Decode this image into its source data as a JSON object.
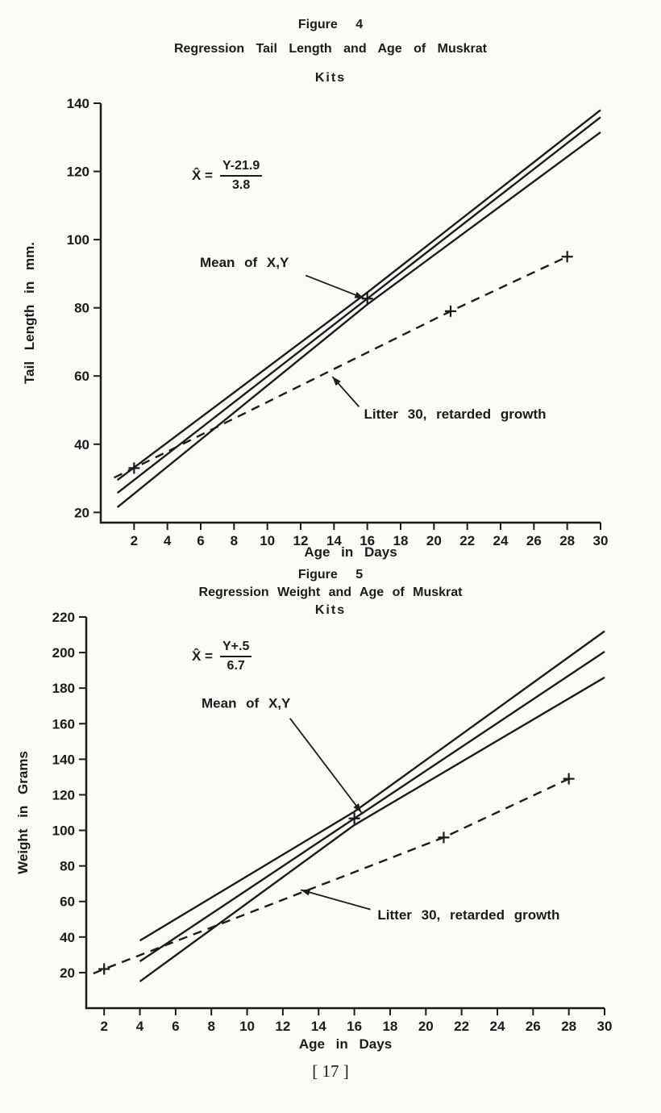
{
  "page": {
    "footer": "[ 17 ]",
    "paper_color": "#fbfbf8",
    "ink_color": "#1b1b1b"
  },
  "chart_data": [
    {
      "type": "line",
      "figure_label": "Figure 4",
      "title": "Regression Tail Length and Age of Muskrat",
      "subtitle": "Kits",
      "formula": {
        "lhs": "X̂ =",
        "numerator": "Y-21.9",
        "denominator": "3.8"
      },
      "xlabel": "Age in Days",
      "ylabel": "Tail Length in mm.",
      "xlim": [
        0,
        30
      ],
      "ylim": [
        17,
        140
      ],
      "xticks": [
        2,
        4,
        6,
        8,
        10,
        12,
        14,
        16,
        18,
        20,
        22,
        24,
        26,
        28,
        30
      ],
      "yticks": [
        20,
        40,
        60,
        80,
        100,
        120,
        140
      ],
      "grid": false,
      "legend": "none",
      "marker_glyph": "+",
      "series": [
        {
          "name": "upper-confidence-band",
          "style": "solid",
          "x": [
            1,
            16,
            30
          ],
          "y": [
            29.5,
            84.5,
            138
          ]
        },
        {
          "name": "mean-regression-line",
          "style": "solid",
          "x": [
            1,
            30
          ],
          "y": [
            25.7,
            135.9
          ],
          "markers": [
            [
              16,
              82.7
            ]
          ]
        },
        {
          "name": "lower-confidence-band",
          "style": "solid",
          "x": [
            1,
            16,
            30
          ],
          "y": [
            21.5,
            81,
            131.5
          ]
        },
        {
          "name": "litter-30-retarded-growth",
          "style": "dashed",
          "x": [
            0.8,
            2,
            21,
            28
          ],
          "y": [
            30.2,
            33,
            79,
            95
          ],
          "markers": [
            [
              2,
              33
            ],
            [
              21,
              79
            ],
            [
              28,
              95
            ]
          ]
        }
      ],
      "annotations": [
        {
          "text": "Mean of X,Y",
          "text_pos": [
            5.95,
            92
          ],
          "arrow": {
            "from": [
              12.3,
              89.5
            ],
            "to": [
              15.8,
              82.8
            ]
          }
        },
        {
          "text": "Litter 30, retarded growth",
          "text_pos": [
            15.8,
            47.5
          ],
          "arrow": {
            "from": [
              15.5,
              51
            ],
            "to": [
              13.9,
              59.8
            ]
          }
        }
      ]
    },
    {
      "type": "line",
      "figure_label": "Figure 5",
      "title": "Regression Weight and Age of Muskrat",
      "subtitle": "Kits",
      "formula": {
        "lhs": "X̂ =",
        "numerator": "Y+.5",
        "denominator": "6.7"
      },
      "xlabel": "Age in Days",
      "ylabel": "Weight in Grams",
      "xlim": [
        1,
        30
      ],
      "ylim": [
        0,
        220
      ],
      "xticks": [
        2,
        4,
        6,
        8,
        10,
        12,
        14,
        16,
        18,
        20,
        22,
        24,
        26,
        28,
        30
      ],
      "yticks": [
        20,
        40,
        60,
        80,
        100,
        120,
        140,
        160,
        180,
        200,
        220
      ],
      "grid": false,
      "legend": "none",
      "marker_glyph": "+",
      "series": [
        {
          "name": "upper-confidence-band",
          "style": "solid",
          "x": [
            4,
            16,
            30
          ],
          "y": [
            38,
            110.5,
            212
          ]
        },
        {
          "name": "mean-regression-line",
          "style": "solid",
          "x": [
            4,
            30
          ],
          "y": [
            26.3,
            200.5
          ],
          "markers": [
            [
              16,
              106.7
            ]
          ]
        },
        {
          "name": "lower-confidence-band",
          "style": "solid",
          "x": [
            4,
            16,
            30
          ],
          "y": [
            15,
            103,
            186
          ]
        },
        {
          "name": "litter-30-retarded-growth",
          "style": "dashed",
          "x": [
            1.4,
            2,
            21,
            28
          ],
          "y": [
            19.5,
            22,
            96,
            129
          ],
          "markers": [
            [
              2,
              22
            ],
            [
              21,
              96
            ],
            [
              28,
              129
            ]
          ]
        }
      ],
      "annotations": [
        {
          "text": "Mean of X,Y",
          "text_pos": [
            7.45,
            169
          ],
          "arrow": {
            "from": [
              12.4,
              163
            ],
            "to": [
              16.4,
              110
            ]
          }
        },
        {
          "text": "Litter 30, retarded growth",
          "text_pos": [
            17.3,
            50
          ],
          "arrow": {
            "from": [
              16.9,
              55.5
            ],
            "to": [
              13,
              66.5
            ]
          }
        }
      ]
    }
  ]
}
